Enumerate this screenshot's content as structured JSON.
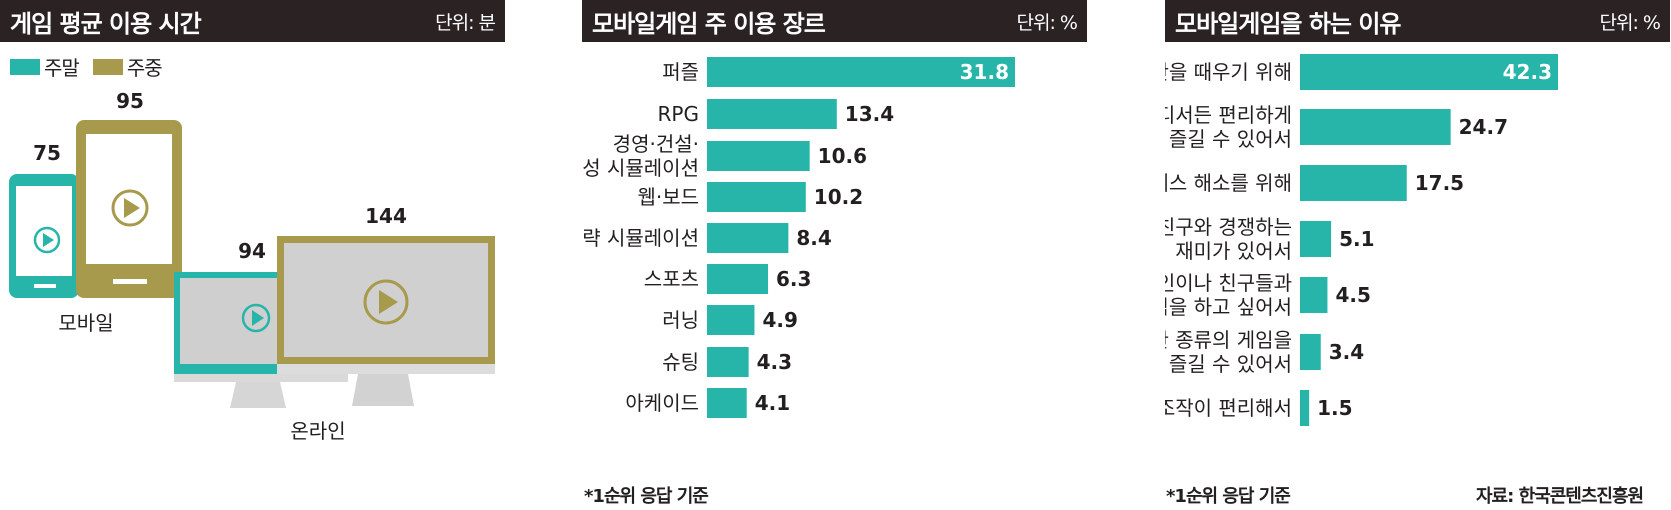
{
  "colors": {
    "teal": "#26b5a8",
    "gold": "#a89a4c",
    "header_bg": "#2b2224",
    "gray": "#d6d6d6"
  },
  "panel1": {
    "title": "게임 평균 이용 시간",
    "unit": "단위: 분",
    "legend": [
      {
        "label": "주말",
        "color": "#26b5a8"
      },
      {
        "label": "주중",
        "color": "#a89a4c"
      }
    ],
    "groups": [
      {
        "name": "모바일",
        "weekend": "75",
        "weekday": "95"
      },
      {
        "name": "온라인",
        "weekend": "94",
        "weekday": "144"
      }
    ]
  },
  "panel2": {
    "title": "모바일게임 주 이용 장르",
    "unit": "단위: %",
    "footnote": "*1순위 응답 기준"
  },
  "panel3": {
    "title": "모바일게임을 하는 이유",
    "unit": "단위: %",
    "footnote": "*1순위 응답 기준",
    "source": "자료: 한국콘텐츠진흥원"
  },
  "chart_data": [
    {
      "type": "bar",
      "title": "게임 평균 이용 시간",
      "unit": "단위: 분",
      "categories": [
        "모바일",
        "온라인"
      ],
      "series": [
        {
          "name": "주말",
          "values": [
            75,
            94
          ]
        },
        {
          "name": "주중",
          "values": [
            95,
            144
          ]
        }
      ]
    },
    {
      "type": "bar",
      "orientation": "horizontal",
      "title": "모바일게임 주 이용 장르",
      "unit": "단위: %",
      "categories": [
        [
          "퍼즐"
        ],
        [
          "RPG"
        ],
        [
          "경영·건설·",
          "육성 시뮬레이션"
        ],
        [
          "웹·보드"
        ],
        [
          "전략 시뮬레이션"
        ],
        [
          "스포츠"
        ],
        [
          "러닝"
        ],
        [
          "슈팅"
        ],
        [
          "아케이드"
        ]
      ],
      "values": [
        31.8,
        13.4,
        10.6,
        10.2,
        8.4,
        6.3,
        4.9,
        4.3,
        4.1
      ],
      "value_labels": [
        "31.8",
        "13.4",
        "10.6",
        "10.2",
        "8.4",
        "6.3",
        "4.9",
        "4.3",
        "4.1"
      ]
    },
    {
      "type": "bar",
      "orientation": "horizontal",
      "title": "모바일게임을 하는 이유",
      "unit": "단위: %",
      "categories": [
        [
          "시간을 때우기 위해"
        ],
        [
          "어디서든 편리하게",
          "즐길 수 있어서"
        ],
        [
          "스트레스 해소를 위해"
        ],
        [
          "게임친구와 경쟁하는",
          "재미가 있어서"
        ],
        [
          "지인이나 친구들과",
          "게임을 하고 싶어서"
        ],
        [
          "다양한 종류의 게임을",
          "즐길 수 있어서"
        ],
        [
          "조작이 편리해서"
        ]
      ],
      "values": [
        42.3,
        24.7,
        17.5,
        5.1,
        4.5,
        3.4,
        1.5
      ],
      "value_labels": [
        "42.3",
        "24.7",
        "17.5",
        "5.1",
        "4.5",
        "3.4",
        "1.5"
      ]
    }
  ]
}
